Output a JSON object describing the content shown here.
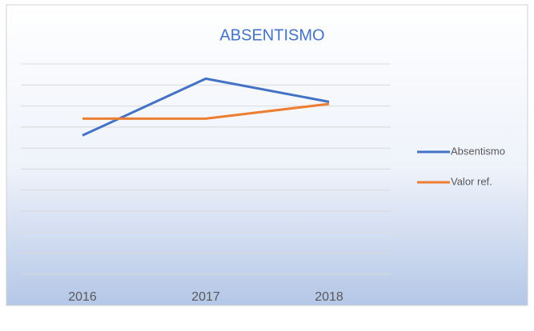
{
  "chart_data": {
    "type": "line",
    "title": "ABSENTISMO",
    "categories": [
      "2016",
      "2017",
      "2018"
    ],
    "series": [
      {
        "name": "Absentismo",
        "color": "#4472c4",
        "values": [
          6.6,
          9.3,
          8.2
        ]
      },
      {
        "name": "Valor ref.",
        "color": "#ed7d31",
        "values": [
          7.4,
          7.4,
          8.1
        ]
      }
    ],
    "ylim": [
      0,
      10
    ],
    "yticks": [
      0,
      1,
      2,
      3,
      4,
      5,
      6,
      7,
      8,
      9,
      10
    ],
    "grid": true,
    "legend": "right"
  }
}
